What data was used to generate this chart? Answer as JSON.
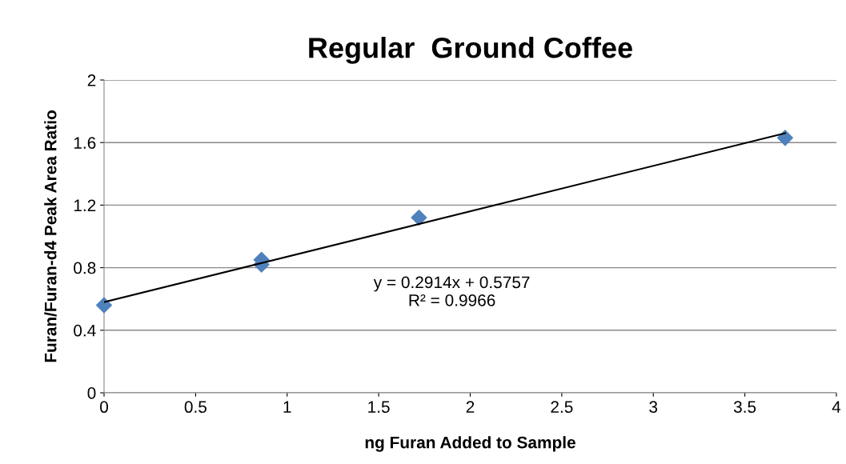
{
  "chart_data": {
    "type": "scatter",
    "title": "Regular  Ground Coffee",
    "xlabel": "ng Furan Added to Sample",
    "ylabel": "Furan/Furan-d4 Peak Area Ratio",
    "series": [
      {
        "color": "#4f81bd",
        "marker": "diamond",
        "x": [
          0,
          0.86,
          0.86,
          1.72,
          3.72
        ],
        "values": [
          0.56,
          0.85,
          0.82,
          1.12,
          1.63
        ]
      },
      {
        "type": "line",
        "color": "#000000",
        "marker": "none",
        "x": [
          0,
          3.72
        ],
        "values": [
          0.58,
          1.66
        ]
      }
    ],
    "annotations": [
      "y = 0.2914x + 0.5757\nR² = 0.9966"
    ],
    "xlim": [
      0,
      4
    ],
    "xticks": [
      0,
      0.5,
      1,
      1.5,
      2,
      2.5,
      3,
      3.5,
      4
    ],
    "ylim": [
      0,
      2
    ],
    "yticks": [
      0,
      0.4,
      0.8,
      1.2,
      1.6,
      2
    ],
    "grid": "y",
    "legend": false
  }
}
